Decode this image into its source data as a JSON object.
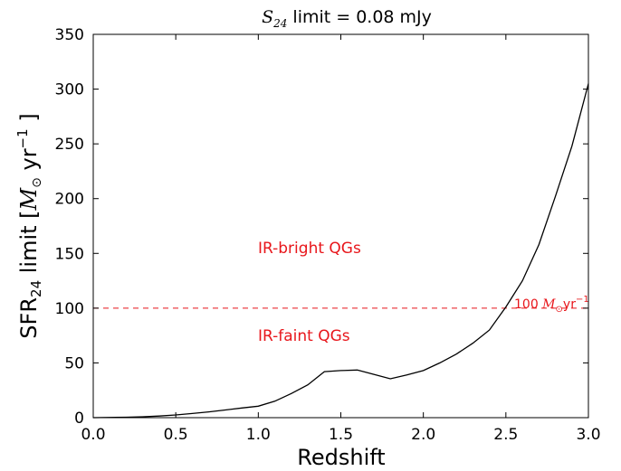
{
  "chart_data": {
    "type": "line",
    "title": {
      "symbol": "S",
      "subscript": "24",
      "text": " limit = 0.08 mJy"
    },
    "xlabel": "Redshift",
    "ylabel": {
      "prefix": "SFR",
      "subscript": "24",
      "middle": " limit [",
      "unit_symbol": "M",
      "unit_sub": "⊙",
      "unit_text": " yr",
      "unit_sup": "−1",
      "suffix": " ]"
    },
    "xlim": [
      0.0,
      3.0
    ],
    "ylim": [
      0,
      350
    ],
    "xticks": [
      "0.0",
      "0.5",
      "1.0",
      "1.5",
      "2.0",
      "2.5",
      "3.0"
    ],
    "yticks": [
      "0",
      "50",
      "100",
      "150",
      "200",
      "250",
      "300",
      "350"
    ],
    "grid": false,
    "series": [
      {
        "color": "#000000",
        "x": [
          0.0,
          0.2,
          0.3,
          0.4,
          0.5,
          0.6,
          0.7,
          0.8,
          0.9,
          1.0,
          1.1,
          1.2,
          1.3,
          1.4,
          1.5,
          1.6,
          1.7,
          1.8,
          1.9,
          2.0,
          2.1,
          2.2,
          2.3,
          2.4,
          2.5,
          2.6,
          2.7,
          2.8,
          2.9,
          3.0
        ],
        "y": [
          0,
          0.4,
          0.8,
          1.5,
          2.5,
          3.8,
          5.3,
          7,
          8.8,
          10.5,
          15,
          22,
          30,
          42,
          43,
          43.5,
          39.5,
          35.5,
          39,
          43,
          50,
          58,
          68,
          80,
          101,
          125,
          158,
          202,
          248,
          305
        ]
      }
    ],
    "reference_line": {
      "y": 100,
      "color": "#e8161b",
      "style": "dashed",
      "label_value": "100 ",
      "label_symbol": "M",
      "label_sub": "⊙",
      "label_text": "yr",
      "label_sup": "−1"
    },
    "annotations": [
      {
        "text": "IR-bright QGs",
        "x": 0.0,
        "y": 150,
        "color": "#e8161b"
      },
      {
        "text": "IR-faint QGs",
        "x": 0.0,
        "y": 71,
        "color": "#e8161b"
      }
    ]
  }
}
